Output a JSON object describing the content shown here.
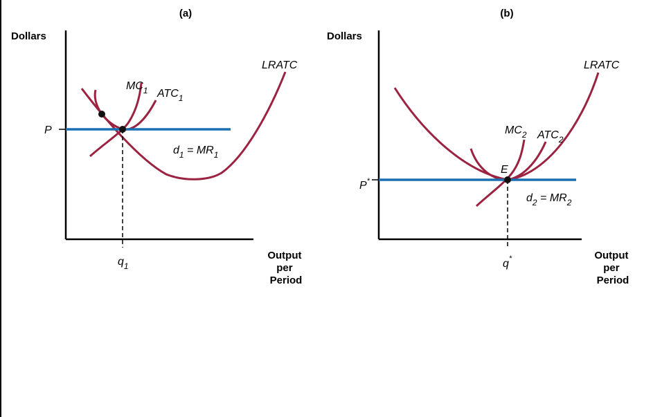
{
  "colors": {
    "curve": "#9b2240",
    "demand": "#1a6fb3",
    "axis": "#000000"
  },
  "panel_a": {
    "title": "(a)",
    "y_axis_label": "Dollars",
    "x_axis_label": [
      "Output",
      "per",
      "Period"
    ],
    "price_label": "P",
    "quantity_label": {
      "base": "q",
      "sub": "1"
    },
    "lratc_label": "LRATC",
    "mc_label": {
      "base": "MC",
      "sub": "1"
    },
    "atc_label": {
      "base": "ATC",
      "sub": "1"
    },
    "demand_label": {
      "d": "d",
      "d_sub": "1",
      "eq": " = MR",
      "mr_sub": "1"
    }
  },
  "panel_b": {
    "title": "(b)",
    "y_axis_label": "Dollars",
    "x_axis_label": [
      "Output",
      "per",
      "Period"
    ],
    "price_label": {
      "base": "P",
      "sup": "*"
    },
    "quantity_label": {
      "base": "q",
      "sup": "*"
    },
    "lratc_label": "LRATC",
    "mc_label": {
      "base": "MC",
      "sub": "2"
    },
    "atc_label": {
      "base": "ATC",
      "sub": "2"
    },
    "equilibrium_label": "E",
    "demand_label": {
      "d": "d",
      "d_sub": "2",
      "eq": " = MR",
      "mr_sub": "2"
    }
  }
}
